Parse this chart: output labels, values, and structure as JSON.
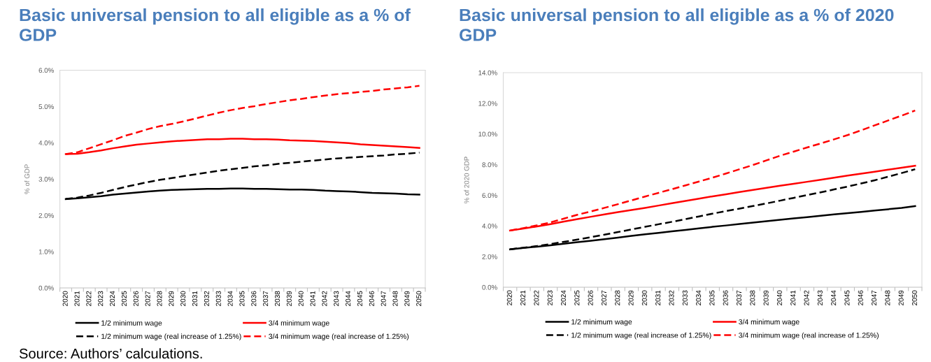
{
  "chart_data": [
    {
      "type": "line",
      "title": "Basic universal pension to all eligible as a % of GDP",
      "ylabel": "% of GDP",
      "legend": "bottom",
      "categories": [
        "2020",
        "2021",
        "2022",
        "2023",
        "2024",
        "2025",
        "2026",
        "2027",
        "2028",
        "2029",
        "2030",
        "2031",
        "2032",
        "2033",
        "2034",
        "2035",
        "2036",
        "2037",
        "2038",
        "2039",
        "2040",
        "2041",
        "2042",
        "2043",
        "2044",
        "2045",
        "2046",
        "2047",
        "2048",
        "2049",
        "2050"
      ],
      "ylim": [
        0,
        6
      ],
      "yticks": [
        {
          "value": 0,
          "label": "0.0%"
        },
        {
          "value": 1,
          "label": "1.0%"
        },
        {
          "value": 2,
          "label": "2.0%"
        },
        {
          "value": 3,
          "label": "3.0%"
        },
        {
          "value": 4,
          "label": "4.0%"
        },
        {
          "value": 5,
          "label": "5.0%"
        },
        {
          "value": 6,
          "label": "6.0%"
        }
      ],
      "series": [
        {
          "name": "1/2 minimum wage",
          "color": "#000000",
          "line_style": "solid",
          "values": [
            2.45,
            2.47,
            2.5,
            2.53,
            2.57,
            2.6,
            2.63,
            2.66,
            2.68,
            2.7,
            2.71,
            2.72,
            2.73,
            2.73,
            2.74,
            2.74,
            2.73,
            2.73,
            2.72,
            2.71,
            2.71,
            2.7,
            2.68,
            2.67,
            2.66,
            2.64,
            2.62,
            2.61,
            2.6,
            2.58,
            2.57
          ]
        },
        {
          "name": "3/4 minimum wage",
          "color": "#ff0000",
          "line_style": "solid",
          "values": [
            3.69,
            3.7,
            3.74,
            3.79,
            3.85,
            3.9,
            3.95,
            3.98,
            4.01,
            4.04,
            4.06,
            4.08,
            4.1,
            4.1,
            4.11,
            4.11,
            4.1,
            4.1,
            4.09,
            4.07,
            4.06,
            4.05,
            4.03,
            4.01,
            3.99,
            3.96,
            3.94,
            3.92,
            3.9,
            3.88,
            3.86
          ]
        },
        {
          "name": "1/2 minimum wage (real increase of 1.25%)",
          "color": "#000000",
          "line_style": "dashed",
          "values": [
            2.45,
            2.49,
            2.55,
            2.62,
            2.7,
            2.78,
            2.85,
            2.92,
            2.98,
            3.03,
            3.08,
            3.13,
            3.18,
            3.23,
            3.27,
            3.31,
            3.35,
            3.38,
            3.42,
            3.45,
            3.48,
            3.51,
            3.54,
            3.57,
            3.59,
            3.61,
            3.63,
            3.65,
            3.68,
            3.7,
            3.73
          ]
        },
        {
          "name": "3/4 minimum wage (real increase of 1.25%)",
          "color": "#ff0000",
          "line_style": "dashed",
          "values": [
            3.69,
            3.74,
            3.85,
            3.96,
            4.07,
            4.19,
            4.28,
            4.38,
            4.46,
            4.52,
            4.59,
            4.67,
            4.75,
            4.83,
            4.9,
            4.96,
            5.01,
            5.07,
            5.12,
            5.17,
            5.21,
            5.26,
            5.3,
            5.34,
            5.37,
            5.4,
            5.43,
            5.47,
            5.5,
            5.53,
            5.57
          ]
        }
      ],
      "annotations": [
        "Source: Authors’ calculations."
      ]
    },
    {
      "type": "line",
      "title": "Basic universal pension to all eligible as a % of 2020 GDP",
      "ylabel": "% of 2020 GDP",
      "legend": "bottom",
      "categories": [
        "2020",
        "2021",
        "2022",
        "2023",
        "2024",
        "2025",
        "2026",
        "2027",
        "2028",
        "2029",
        "2030",
        "2031",
        "2032",
        "2033",
        "2034",
        "2035",
        "2036",
        "2037",
        "2038",
        "2039",
        "2040",
        "2041",
        "2042",
        "2043",
        "2044",
        "2045",
        "2046",
        "2047",
        "2048",
        "2049",
        "2050"
      ],
      "ylim": [
        0,
        14
      ],
      "yticks": [
        {
          "value": 0,
          "label": "0.0%"
        },
        {
          "value": 2,
          "label": "2.0%"
        },
        {
          "value": 4,
          "label": "4.0%"
        },
        {
          "value": 6,
          "label": "6.0%"
        },
        {
          "value": 8,
          "label": "8.0%"
        },
        {
          "value": 10,
          "label": "10.0%"
        },
        {
          "value": 12,
          "label": "12.0%"
        },
        {
          "value": 14,
          "label": "14.0%"
        }
      ],
      "series": [
        {
          "name": "1/2 minimum wage",
          "color": "#000000",
          "line_style": "solid",
          "values": [
            2.47,
            2.57,
            2.65,
            2.74,
            2.84,
            2.94,
            3.03,
            3.13,
            3.24,
            3.35,
            3.45,
            3.55,
            3.65,
            3.74,
            3.84,
            3.94,
            4.03,
            4.13,
            4.22,
            4.31,
            4.4,
            4.49,
            4.57,
            4.66,
            4.75,
            4.83,
            4.91,
            5.0,
            5.09,
            5.18,
            5.29
          ]
        },
        {
          "name": "3/4 minimum wage",
          "color": "#ff0000",
          "line_style": "solid",
          "values": [
            3.7,
            3.83,
            3.97,
            4.12,
            4.29,
            4.45,
            4.6,
            4.75,
            4.9,
            5.04,
            5.18,
            5.33,
            5.48,
            5.63,
            5.78,
            5.93,
            6.07,
            6.21,
            6.35,
            6.49,
            6.62,
            6.75,
            6.88,
            7.01,
            7.15,
            7.28,
            7.41,
            7.54,
            7.67,
            7.8,
            7.93
          ]
        },
        {
          "name": "1/2 minimum wage (real increase of 1.25%)",
          "color": "#000000",
          "line_style": "dashed",
          "values": [
            2.47,
            2.58,
            2.69,
            2.82,
            2.96,
            3.11,
            3.27,
            3.43,
            3.6,
            3.77,
            3.94,
            4.11,
            4.27,
            4.44,
            4.62,
            4.8,
            4.97,
            5.13,
            5.3,
            5.47,
            5.65,
            5.83,
            6.01,
            6.19,
            6.38,
            6.57,
            6.77,
            6.98,
            7.21,
            7.45,
            7.7
          ]
        },
        {
          "name": "3/4 minimum wage (real increase of 1.25%)",
          "color": "#ff0000",
          "line_style": "dashed",
          "values": [
            3.7,
            3.86,
            4.04,
            4.23,
            4.48,
            4.73,
            4.95,
            5.18,
            5.42,
            5.67,
            5.92,
            6.16,
            6.4,
            6.65,
            6.9,
            7.15,
            7.42,
            7.7,
            7.98,
            8.28,
            8.58,
            8.85,
            9.12,
            9.38,
            9.65,
            9.93,
            10.24,
            10.56,
            10.88,
            11.2,
            11.53
          ]
        }
      ]
    }
  ]
}
